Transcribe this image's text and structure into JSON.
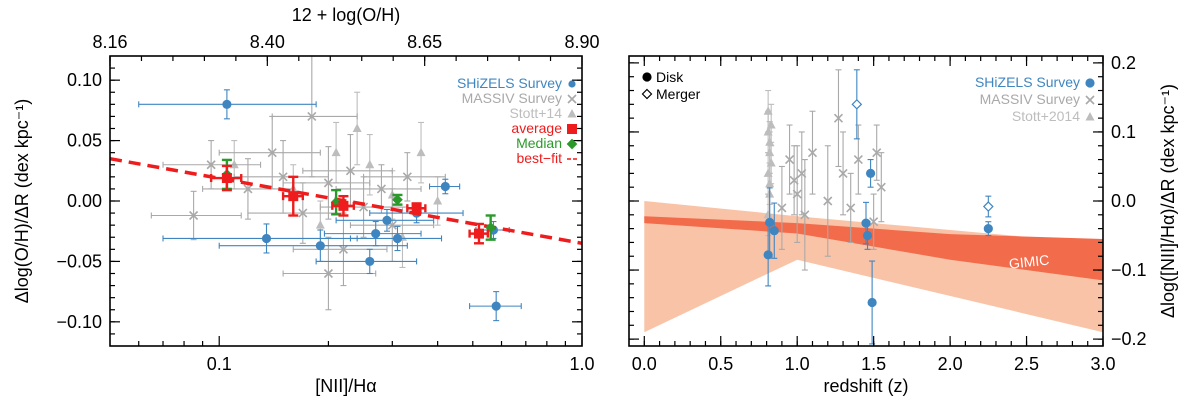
{
  "chart_data": [
    {
      "type": "scatter",
      "top_axis": {
        "label": "12 + log(O/H)",
        "ticks": [
          "8.16",
          "8.40",
          "8.65",
          "8.90"
        ]
      },
      "xlabel": "[NII]/Hα",
      "ylabel": "Δlog(O/H)/ΔR (dex kpc⁻¹)",
      "xscale": "log",
      "xlim": [
        0.05,
        1.0
      ],
      "ylim": [
        -0.12,
        0.12
      ],
      "x_ticks": [
        "0.1",
        "1.0"
      ],
      "y_ticks": [
        "−0.10",
        "−0.05",
        "0.00",
        "0.05",
        "0.10"
      ],
      "legend_position": "top-right",
      "legend": [
        "SHiZELS Survey",
        "MASSIV Survey",
        "Stott+14",
        "average",
        "Median",
        "best−fit"
      ],
      "colors": {
        "shizels": "#3f86c1",
        "massiv": "#a9a9a9",
        "stott": "#bdbdbd",
        "average": "#ee1c1c",
        "median": "#2a9a2a",
        "bestfit": "#ee1c1c"
      },
      "series": [
        {
          "name": "SHiZELS Survey",
          "marker": "circle",
          "points": [
            {
              "x": 0.105,
              "y": 0.08,
              "xerr": [
                0.06,
                0.185
              ],
              "yerr": 0.012
            },
            {
              "x": 0.135,
              "y": -0.031,
              "xerr": [
                0.07,
                0.24
              ],
              "yerr": 0.012
            },
            {
              "x": 0.19,
              "y": -0.037,
              "xerr": [
                0.1,
                0.33
              ],
              "yerr": 0.013
            },
            {
              "x": 0.27,
              "y": -0.027,
              "xerr": [
                0.195,
                0.36
              ],
              "yerr": 0.01
            },
            {
              "x": 0.26,
              "y": -0.05,
              "xerr": [
                0.185,
                0.35
              ],
              "yerr": 0.01
            },
            {
              "x": 0.29,
              "y": -0.016,
              "xerr": [
                0.21,
                0.39
              ],
              "yerr": 0.009
            },
            {
              "x": 0.31,
              "y": -0.031,
              "xerr": [
                0.23,
                0.41
              ],
              "yerr": 0.01
            },
            {
              "x": 0.35,
              "y": -0.01,
              "xerr": [
                0.26,
                0.47
              ],
              "yerr": 0.008
            },
            {
              "x": 0.42,
              "y": 0.012,
              "xerr": [
                0.38,
                0.46
              ],
              "yerr": 0.006
            },
            {
              "x": 0.58,
              "y": -0.087,
              "xerr": [
                0.49,
                0.68
              ],
              "yerr": 0.012
            },
            {
              "x": 0.57,
              "y": -0.024,
              "xerr": [
                0.51,
                0.63
              ],
              "yerr": 0.007
            }
          ]
        },
        {
          "name": "MASSIV Survey",
          "marker": "x",
          "points": [
            {
              "x": 0.095,
              "y": 0.03,
              "xerr": [
                0.07,
                0.13
              ],
              "yerr": 0.02
            },
            {
              "x": 0.085,
              "y": -0.012,
              "xerr": [
                0.065,
                0.115
              ],
              "yerr": 0.02
            },
            {
              "x": 0.12,
              "y": 0.01,
              "xerr": [
                0.09,
                0.16
              ],
              "yerr": 0.025
            },
            {
              "x": 0.15,
              "y": 0.02,
              "xerr": [
                0.11,
                0.2
              ],
              "yerr": 0.03
            },
            {
              "x": 0.18,
              "y": 0.07,
              "xerr": [
                0.14,
                0.24
              ],
              "yerr": 0.05
            },
            {
              "x": 0.2,
              "y": 0.015,
              "xerr": [
                0.15,
                0.26
              ],
              "yerr": 0.03
            },
            {
              "x": 0.17,
              "y": -0.01,
              "xerr": [
                0.12,
                0.22
              ],
              "yerr": 0.025
            },
            {
              "x": 0.23,
              "y": 0.025,
              "xerr": [
                0.17,
                0.3
              ],
              "yerr": 0.03
            },
            {
              "x": 0.25,
              "y": -0.005,
              "xerr": [
                0.19,
                0.33
              ],
              "yerr": 0.025
            },
            {
              "x": 0.22,
              "y": -0.04,
              "xerr": [
                0.16,
                0.29
              ],
              "yerr": 0.03
            },
            {
              "x": 0.28,
              "y": 0.01,
              "xerr": [
                0.21,
                0.36
              ],
              "yerr": 0.02
            },
            {
              "x": 0.3,
              "y": -0.02,
              "xerr": [
                0.23,
                0.39
              ],
              "yerr": 0.03
            },
            {
              "x": 0.33,
              "y": 0.02,
              "xerr": [
                0.25,
                0.42
              ],
              "yerr": 0.02
            },
            {
              "x": 0.2,
              "y": -0.06,
              "xerr": [
                0.15,
                0.27
              ],
              "yerr": 0.03
            },
            {
              "x": 0.14,
              "y": 0.04,
              "xerr": [
                0.1,
                0.19
              ],
              "yerr": 0.03
            }
          ]
        },
        {
          "name": "Stott+14",
          "marker": "triangle",
          "points": [
            {
              "x": 0.11,
              "y": 0.03,
              "yerr": 0.02
            },
            {
              "x": 0.16,
              "y": 0.01,
              "yerr": 0.02
            },
            {
              "x": 0.21,
              "y": 0.04,
              "yerr": 0.025
            },
            {
              "x": 0.24,
              "y": 0.06,
              "yerr": 0.03
            },
            {
              "x": 0.26,
              "y": 0.03,
              "yerr": 0.025
            },
            {
              "x": 0.3,
              "y": 0.005,
              "yerr": 0.02
            },
            {
              "x": 0.32,
              "y": -0.03,
              "yerr": 0.025
            },
            {
              "x": 0.36,
              "y": 0.04,
              "yerr": 0.025
            },
            {
              "x": 0.19,
              "y": -0.02,
              "yerr": 0.02
            },
            {
              "x": 0.4,
              "y": 0.0,
              "yerr": 0.02
            }
          ]
        },
        {
          "name": "average",
          "marker": "square",
          "points": [
            {
              "x": 0.105,
              "y": 0.019,
              "xerr": [
                0.095,
                0.115
              ],
              "yerr": 0.01
            },
            {
              "x": 0.16,
              "y": 0.004,
              "xerr": [
                0.15,
                0.17
              ],
              "yerr": 0.016
            },
            {
              "x": 0.22,
              "y": -0.004,
              "xerr": [
                0.205,
                0.235
              ],
              "yerr": 0.008
            },
            {
              "x": 0.35,
              "y": -0.006,
              "xerr": [
                0.33,
                0.37
              ],
              "yerr": 0.004
            },
            {
              "x": 0.52,
              "y": -0.027,
              "xerr": [
                0.49,
                0.55
              ],
              "yerr": 0.008
            }
          ]
        },
        {
          "name": "Median",
          "marker": "diamond",
          "points": [
            {
              "x": 0.105,
              "y": 0.022,
              "yerr": 0.012
            },
            {
              "x": 0.21,
              "y": -0.001,
              "yerr": 0.01
            },
            {
              "x": 0.31,
              "y": 0.001,
              "yerr": 0.004
            },
            {
              "x": 0.56,
              "y": -0.022,
              "yerr": 0.01
            }
          ]
        }
      ],
      "fit_line": {
        "name": "best−fit",
        "x": [
          0.05,
          1.0
        ],
        "y": [
          0.035,
          -0.035
        ]
      }
    },
    {
      "type": "scatter",
      "xlabel": "redshift (z)",
      "ylabel": "Δlog([NII]/Hα)/ΔR (dex kpc⁻¹)",
      "xlim": [
        -0.1,
        3.0
      ],
      "ylim": [
        -0.21,
        0.21
      ],
      "x_ticks": [
        "0.0",
        "0.5",
        "1.0",
        "1.5",
        "2.0",
        "2.5",
        "3.0"
      ],
      "y_ticks": [
        "−0.2",
        "−0.1",
        "0.0",
        "0.1",
        "0.2"
      ],
      "legend_position": "top-right",
      "legend": [
        "SHiZELS Survey",
        "MASSIV Survey",
        "Stott+2014"
      ],
      "marker_legend": [
        "Disk",
        "Merger"
      ],
      "band_label": "GIMIC",
      "colors": {
        "shizels": "#3f86c1",
        "massiv": "#a9a9a9",
        "stott": "#bdbdbd",
        "band_outer": "#f9c3a7",
        "band_inner": "#f26b4b"
      },
      "outer_band": {
        "z": [
          0.0,
          1.0,
          3.0
        ],
        "upper": [
          0.0,
          -0.022,
          -0.062
        ],
        "lower": [
          -0.19,
          -0.085,
          -0.19
        ]
      },
      "inner_band": {
        "z": [
          0.0,
          1.0,
          2.0,
          3.0
        ],
        "upper": [
          -0.022,
          -0.032,
          -0.048,
          -0.055
        ],
        "lower": [
          -0.032,
          -0.047,
          -0.085,
          -0.115
        ]
      },
      "series": [
        {
          "name": "SHiZELS Survey",
          "marker": "circle",
          "points": [
            {
              "x": 0.82,
              "y": -0.031,
              "yerr": 0.05,
              "kind": "disk"
            },
            {
              "x": 0.81,
              "y": -0.078,
              "yerr": 0.045,
              "kind": "disk"
            },
            {
              "x": 0.85,
              "y": -0.043,
              "yerr": 0.04,
              "kind": "disk"
            },
            {
              "x": 1.39,
              "y": 0.14,
              "yerr": 0.05,
              "kind": "merger"
            },
            {
              "x": 1.45,
              "y": -0.032,
              "yerr": 0.03,
              "kind": "disk"
            },
            {
              "x": 1.46,
              "y": -0.05,
              "yerr": 0.02,
              "kind": "disk"
            },
            {
              "x": 1.48,
              "y": 0.04,
              "yerr": 0.02,
              "kind": "disk"
            },
            {
              "x": 1.49,
              "y": -0.147,
              "yerr": 0.06,
              "kind": "disk"
            },
            {
              "x": 2.25,
              "y": -0.008,
              "yerr": 0.015,
              "kind": "merger"
            },
            {
              "x": 2.25,
              "y": -0.04,
              "yerr": 0.01,
              "kind": "disk"
            }
          ]
        },
        {
          "name": "MASSIV Survey",
          "marker": "x",
          "points": [
            {
              "x": 0.95,
              "y": 0.06,
              "yerr": 0.05
            },
            {
              "x": 1.0,
              "y": 0.01,
              "yerr": 0.07
            },
            {
              "x": 1.03,
              "y": 0.04,
              "yerr": 0.06
            },
            {
              "x": 1.05,
              "y": -0.02,
              "yerr": 0.08
            },
            {
              "x": 0.98,
              "y": 0.03,
              "yerr": 0.05
            },
            {
              "x": 1.1,
              "y": 0.07,
              "yerr": 0.06
            },
            {
              "x": 1.2,
              "y": 0.0,
              "yerr": 0.08
            },
            {
              "x": 1.27,
              "y": 0.12,
              "yerr": 0.07
            },
            {
              "x": 1.3,
              "y": 0.04,
              "yerr": 0.06
            },
            {
              "x": 1.35,
              "y": -0.01,
              "yerr": 0.05
            },
            {
              "x": 1.4,
              "y": 0.06,
              "yerr": 0.05
            },
            {
              "x": 1.52,
              "y": 0.07,
              "yerr": 0.04
            },
            {
              "x": 1.55,
              "y": 0.02,
              "yerr": 0.05
            },
            {
              "x": 1.5,
              "y": -0.03,
              "yerr": 0.04
            },
            {
              "x": 0.9,
              "y": -0.01,
              "yerr": 0.06
            }
          ]
        },
        {
          "name": "Stott+2014",
          "marker": "triangle",
          "points": [
            {
              "x": 0.81,
              "y": 0.13,
              "yerr": 0.03
            },
            {
              "x": 0.81,
              "y": 0.1,
              "yerr": 0.03
            },
            {
              "x": 0.82,
              "y": 0.07,
              "yerr": 0.03
            },
            {
              "x": 0.81,
              "y": 0.04,
              "yerr": 0.03
            },
            {
              "x": 0.82,
              "y": 0.01,
              "yerr": 0.03
            },
            {
              "x": 0.81,
              "y": -0.02,
              "yerr": 0.03
            },
            {
              "x": 0.83,
              "y": 0.11,
              "yerr": 0.03
            },
            {
              "x": 0.82,
              "y": 0.085,
              "yerr": 0.03
            },
            {
              "x": 0.83,
              "y": 0.055,
              "yerr": 0.03
            },
            {
              "x": 0.82,
              "y": 0.025,
              "yerr": 0.03
            }
          ]
        }
      ]
    }
  ]
}
